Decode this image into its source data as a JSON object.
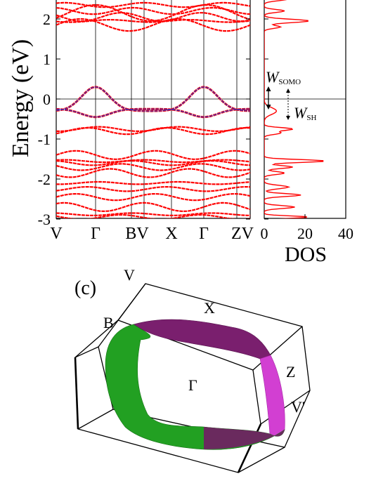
{
  "band_panel": {
    "ylabel": "Energy (eV)",
    "y_ticks": [
      "2",
      "1",
      "0",
      "-1",
      "-2",
      "-3"
    ],
    "k_labels": [
      "V",
      "Γ",
      "BV",
      "X",
      "Γ",
      "ZV"
    ],
    "band_color": "#ff0000",
    "somo_color": "#3030c0"
  },
  "dos_panel": {
    "xlabel": "DOS",
    "x_ticks": [
      "0",
      "20",
      "40"
    ],
    "w_somo": {
      "main": "W",
      "sub": "SOMO"
    },
    "w_sh": {
      "main": "W",
      "sub": "SH"
    },
    "line_color": "#ff0000"
  },
  "fermi_surface": {
    "panel_label": "(c)",
    "points": {
      "V_top": "V",
      "X": "X",
      "B": "B",
      "Gamma": "Γ",
      "Z": "Z",
      "V_prime": "V'"
    },
    "colors": {
      "green": "#22a022",
      "purple": "#7a1f6e",
      "magenta": "#d23fd2"
    }
  }
}
